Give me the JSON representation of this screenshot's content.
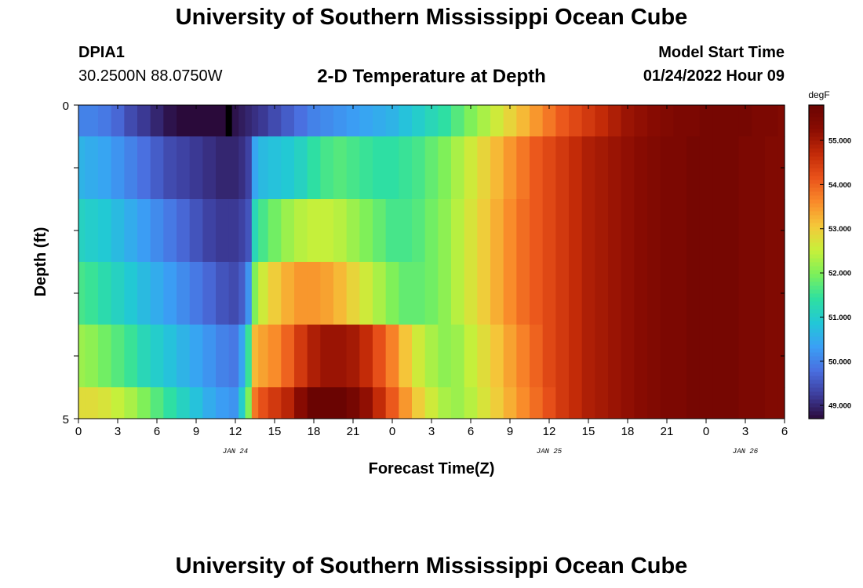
{
  "header": {
    "title": "University of Southern Mississippi Ocean Cube",
    "station_id": "DPIA1",
    "coordinates": "30.2500N  88.0750W",
    "subtitle": "2-D Temperature at Depth",
    "model_start_label": "Model Start Time",
    "model_start_time": "01/24/2022 Hour 09"
  },
  "footer": {
    "title": "University of Southern Mississippi Ocean Cube"
  },
  "chart_data": {
    "type": "heatmap",
    "title": "2-D Temperature at Depth",
    "xlabel": "Forecast Time(Z)",
    "ylabel": "Depth (ft)",
    "x_hours_from_jan24_00z": [
      0,
      54
    ],
    "x_tick_labels": [
      "0",
      "3",
      "6",
      "9",
      "12",
      "15",
      "18",
      "21",
      "0",
      "3",
      "6",
      "9",
      "12",
      "15",
      "18",
      "21",
      "0",
      "3",
      "6"
    ],
    "date_labels": [
      {
        "label": "JAN 24",
        "hour": 12
      },
      {
        "label": "JAN 25",
        "hour": 36
      },
      {
        "label": "JAN 26",
        "hour": 51
      }
    ],
    "y_tick_labels": [
      "0",
      "5"
    ],
    "ylim": [
      0,
      5
    ],
    "depth_layers_ft": [
      0.25,
      1.5,
      2.5,
      3.5,
      4.5,
      5.0
    ],
    "time_hours": [
      0,
      1,
      2,
      3,
      4,
      5,
      6,
      7,
      8,
      9,
      10,
      11,
      12,
      12.5,
      13,
      13.5,
      14,
      15,
      16,
      17,
      18,
      19,
      20,
      21,
      22,
      23,
      24,
      25,
      26,
      27,
      28,
      29,
      30,
      31,
      32,
      33,
      34,
      35,
      36,
      37,
      38,
      39,
      40,
      41,
      42,
      43,
      44,
      45,
      46,
      47,
      48,
      49,
      50,
      51,
      52,
      53,
      54
    ],
    "temperature_degF": [
      [
        50.0,
        50.0,
        49.9,
        49.7,
        49.4,
        49.2,
        49.0,
        48.8,
        48.7,
        48.6,
        48.6,
        48.7,
        48.8,
        48.9,
        49.0,
        49.1,
        49.2,
        49.4,
        49.6,
        49.8,
        50.0,
        50.1,
        50.2,
        50.3,
        50.4,
        50.5,
        50.6,
        50.8,
        51.0,
        51.2,
        51.4,
        51.7,
        52.0,
        52.3,
        52.6,
        52.9,
        53.2,
        53.5,
        53.8,
        54.1,
        54.3,
        54.5,
        54.7,
        54.9,
        55.1,
        55.2,
        55.3,
        55.4,
        55.5,
        55.5,
        55.6,
        55.6,
        55.6,
        55.6,
        55.5,
        55.5,
        55.4
      ],
      [
        50.6,
        50.5,
        50.4,
        50.2,
        50.0,
        49.8,
        49.6,
        49.4,
        49.3,
        49.2,
        49.1,
        49.0,
        49.0,
        49.1,
        49.3,
        50.4,
        50.7,
        50.8,
        50.9,
        51.1,
        51.4,
        51.6,
        51.7,
        51.6,
        51.5,
        51.4,
        51.4,
        51.5,
        51.6,
        51.8,
        52.0,
        52.3,
        52.6,
        52.9,
        53.2,
        53.5,
        53.8,
        54.1,
        54.3,
        54.5,
        54.7,
        54.9,
        55.0,
        55.1,
        55.2,
        55.3,
        55.4,
        55.5,
        55.5,
        55.6,
        55.6,
        55.6,
        55.6,
        55.5,
        55.5,
        55.4,
        55.4
      ],
      [
        51.1,
        51.0,
        50.9,
        50.7,
        50.5,
        50.3,
        50.1,
        49.9,
        49.7,
        49.5,
        49.3,
        49.2,
        49.2,
        49.3,
        49.5,
        51.2,
        51.6,
        51.9,
        52.2,
        52.4,
        52.5,
        52.5,
        52.4,
        52.2,
        52.0,
        51.8,
        51.6,
        51.6,
        51.7,
        51.9,
        52.1,
        52.4,
        52.7,
        53.0,
        53.3,
        53.6,
        53.9,
        54.1,
        54.3,
        54.5,
        54.7,
        54.9,
        55.0,
        55.1,
        55.2,
        55.3,
        55.4,
        55.5,
        55.5,
        55.6,
        55.6,
        55.6,
        55.6,
        55.5,
        55.5,
        55.4,
        55.4
      ],
      [
        51.6,
        51.5,
        51.3,
        51.1,
        50.9,
        50.7,
        50.5,
        50.3,
        50.1,
        49.9,
        49.7,
        49.5,
        49.4,
        49.6,
        50.2,
        52.0,
        52.6,
        53.0,
        53.3,
        53.5,
        53.5,
        53.4,
        53.2,
        52.9,
        52.6,
        52.3,
        52.0,
        51.8,
        51.8,
        51.9,
        52.1,
        52.4,
        52.7,
        53.0,
        53.3,
        53.6,
        53.9,
        54.1,
        54.3,
        54.5,
        54.7,
        54.9,
        55.0,
        55.1,
        55.2,
        55.3,
        55.4,
        55.5,
        55.5,
        55.6,
        55.6,
        55.6,
        55.6,
        55.5,
        55.5,
        55.4,
        55.4
      ],
      [
        52.2,
        52.1,
        51.9,
        51.7,
        51.5,
        51.2,
        51.0,
        50.8,
        50.6,
        50.4,
        50.2,
        50.0,
        49.9,
        50.4,
        51.5,
        53.2,
        53.4,
        53.6,
        54.0,
        54.5,
        54.9,
        55.1,
        55.1,
        55.0,
        54.7,
        54.2,
        53.7,
        53.1,
        52.6,
        52.3,
        52.1,
        52.2,
        52.5,
        52.8,
        53.1,
        53.4,
        53.7,
        54.0,
        54.3,
        54.5,
        54.7,
        54.9,
        55.0,
        55.1,
        55.2,
        55.3,
        55.4,
        55.5,
        55.5,
        55.6,
        55.6,
        55.6,
        55.6,
        55.5,
        55.5,
        55.4,
        55.4
      ],
      [
        52.8,
        52.8,
        52.7,
        52.5,
        52.3,
        52.0,
        51.7,
        51.4,
        51.1,
        50.8,
        50.5,
        50.3,
        50.2,
        51.0,
        52.0,
        53.8,
        54.2,
        54.5,
        54.8,
        55.3,
        55.8,
        56.0,
        55.9,
        55.6,
        55.2,
        54.7,
        54.1,
        53.5,
        53.0,
        52.6,
        52.3,
        52.2,
        52.4,
        52.7,
        53.0,
        53.3,
        53.6,
        53.9,
        54.2,
        54.5,
        54.7,
        54.9,
        55.0,
        55.1,
        55.2,
        55.3,
        55.4,
        55.5,
        55.5,
        55.6,
        55.6,
        55.6,
        55.6,
        55.5,
        55.5,
        55.4,
        55.4
      ]
    ],
    "colorbar": {
      "unit": "degF",
      "range": [
        48.7,
        55.8
      ],
      "tick_labels": [
        "49.000",
        "50.000",
        "51.000",
        "52.000",
        "53.000",
        "54.000",
        "55.000"
      ],
      "tick_values": [
        49,
        50,
        51,
        52,
        53,
        54,
        55
      ]
    },
    "annotations": [
      {
        "type": "black-bar",
        "hour": 11.5,
        "depth_ft": [
          0,
          0.5
        ]
      }
    ],
    "colors": [
      "#2a0a3a",
      "#3d3d9c",
      "#4a6fe0",
      "#3aa0f5",
      "#22c8d6",
      "#2fe0a0",
      "#7cf05a",
      "#c8f03a",
      "#f5c83a",
      "#f98a2a",
      "#e9521a",
      "#c22a08",
      "#8a0c02",
      "#6a0402"
    ]
  }
}
